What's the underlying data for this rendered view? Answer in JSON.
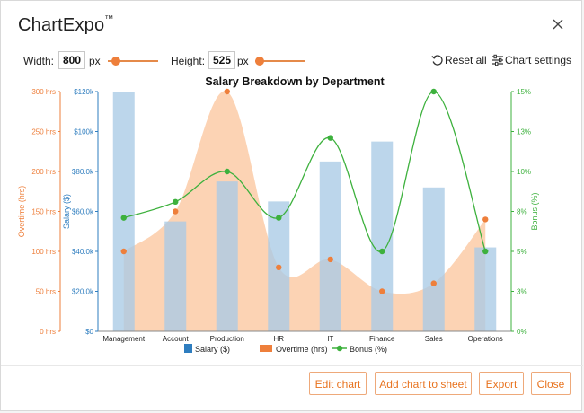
{
  "window": {
    "title": "ChartExpo",
    "trademark": "™",
    "close_icon": "close-icon"
  },
  "toolbar": {
    "width_label": "Width:",
    "width_value": "800",
    "width_unit": "px",
    "height_label": "Height:",
    "height_value": "525",
    "height_unit": "px",
    "reset_label": "Reset all",
    "settings_label": "Chart settings"
  },
  "footer": {
    "edit_label": "Edit chart",
    "add_label": "Add chart to sheet",
    "export_label": "Export",
    "close_label": "Close"
  },
  "colors": {
    "salary": "#a9cbe6",
    "overtime": "#fbc49b",
    "bonus": "#3db13d",
    "overtime_axis": "#ee7f3b",
    "salary_axis": "#2e7dbf",
    "bonus_axis": "#3db13d",
    "accent": "#e8731f"
  },
  "chart_data": {
    "type": "bar",
    "title": "Salary Breakdown by Department",
    "categories": [
      "Management",
      "Account",
      "Production",
      "HR",
      "IT",
      "Finance",
      "Sales",
      "Operations"
    ],
    "series": [
      {
        "name": "Salary ($)",
        "type": "bar",
        "axis": "salary",
        "values": [
          120000,
          55000,
          75000,
          65000,
          85000,
          95000,
          72000,
          42000
        ]
      },
      {
        "name": "Overtime (hrs)",
        "type": "area",
        "axis": "overtime",
        "values": [
          100,
          150,
          300,
          80,
          90,
          50,
          60,
          140
        ]
      },
      {
        "name": "Bonus (%)",
        "type": "line",
        "axis": "bonus",
        "values": [
          7.1,
          8.1,
          10,
          7.1,
          12.1,
          5,
          15,
          5
        ]
      }
    ],
    "axes": {
      "overtime": {
        "label": "Overtime (hrs)",
        "ylim": [
          0,
          300
        ],
        "ticks": [
          "0 hrs",
          "50 hrs",
          "100 hrs",
          "150 hrs",
          "200 hrs",
          "250 hrs",
          "300 hrs"
        ]
      },
      "salary": {
        "label": "Salary ($)",
        "ylim": [
          0,
          120000
        ],
        "ticks": [
          "$0",
          "$20.0k",
          "$40.0k",
          "$60.0k",
          "$80.0k",
          "$100k",
          "$120k"
        ]
      },
      "bonus": {
        "label": "Bonus (%)",
        "ylim": [
          0,
          15
        ],
        "ticks": [
          "0%",
          "3%",
          "5%",
          "8%",
          "10%",
          "13%",
          "15%"
        ]
      }
    },
    "legend": [
      "Salary ($)",
      "Overtime (hrs)",
      "Bonus (%)"
    ],
    "legend_position": "bottom",
    "grid": false
  }
}
